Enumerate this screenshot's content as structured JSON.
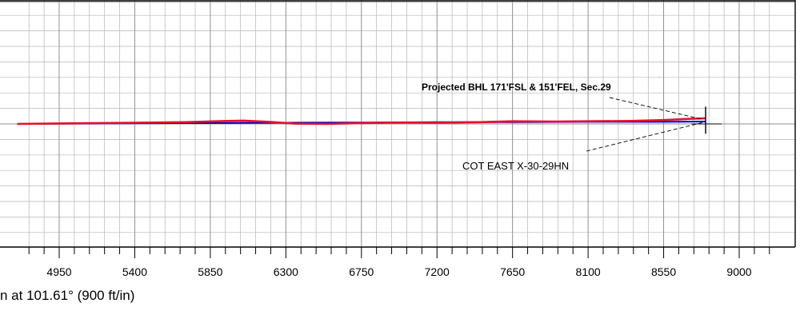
{
  "chart_data": {
    "type": "line",
    "title": "",
    "xlabel": "",
    "ylabel": "",
    "xlim": [
      4700,
      9250
    ],
    "ylim": [
      -420,
      420
    ],
    "x_ticks": [
      4950,
      5400,
      5850,
      6300,
      6750,
      7200,
      7650,
      8100,
      8550,
      9000
    ],
    "grid": true,
    "series": [
      {
        "color": "#0000cc",
        "x": [
          4700,
          5400,
          5850,
          6300,
          6750,
          7200,
          7650,
          8100,
          8550,
          8800
        ],
        "y": [
          0,
          2,
          3,
          4,
          5,
          6,
          6,
          7,
          7,
          8
        ]
      },
      {
        "color": "#e8102a",
        "x": [
          4700,
          5000,
          5400,
          5700,
          5950,
          6050,
          6200,
          6350,
          6550,
          6750,
          7000,
          7200,
          7450,
          7650,
          7900,
          8100,
          8350,
          8550,
          8700,
          8800
        ],
        "y": [
          0,
          2,
          4,
          6,
          10,
          11,
          7,
          1,
          0,
          3,
          5,
          4,
          6,
          9,
          8,
          9,
          10,
          13,
          17,
          19
        ]
      }
    ],
    "target_marker": {
      "x": 8800,
      "y": 10
    },
    "annotations": [
      {
        "text": "Projected BHL 171'FSL & 151'FEL, Sec.29",
        "bold": true
      },
      {
        "text": "COT EAST X-30-29HN",
        "bold": false
      }
    ]
  },
  "caption": "n at 101.61° (900 ft/in)"
}
